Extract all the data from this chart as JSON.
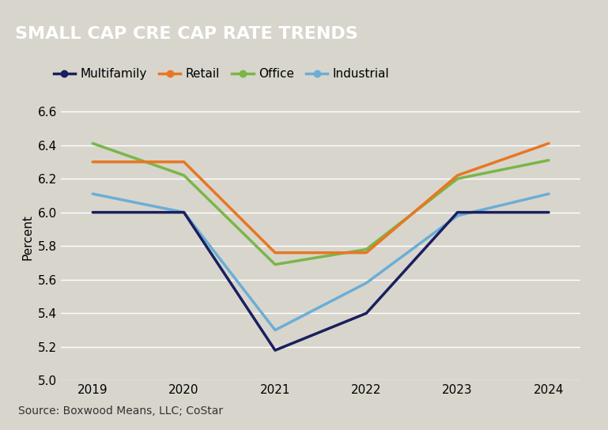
{
  "title": "SMALL CAP CRE CAP RATE TRENDS",
  "title_bg_color": "#696969",
  "title_text_color": "#ffffff",
  "chart_bg_color": "#d8d5cd",
  "plot_bg_color": "#d8d5cd",
  "source_text": "Source: Boxwood Means, LLC; CoStar",
  "ylabel": "Percent",
  "years": [
    2019,
    2020,
    2021,
    2022,
    2023,
    2024
  ],
  "ylim": [
    5.0,
    6.7
  ],
  "yticks": [
    5.0,
    5.2,
    5.4,
    5.6,
    5.8,
    6.0,
    6.2,
    6.4,
    6.6
  ],
  "series": {
    "Multifamily": {
      "values": [
        6.0,
        6.0,
        5.18,
        5.4,
        6.0,
        6.0
      ],
      "color": "#1a1f5e",
      "linewidth": 2.5,
      "zorder": 4
    },
    "Retail": {
      "values": [
        6.3,
        6.3,
        5.76,
        5.76,
        6.22,
        6.41
      ],
      "color": "#e87722",
      "linewidth": 2.5,
      "zorder": 3
    },
    "Office": {
      "values": [
        6.41,
        6.22,
        5.69,
        5.78,
        6.2,
        6.31
      ],
      "color": "#7ab648",
      "linewidth": 2.5,
      "zorder": 2
    },
    "Industrial": {
      "values": [
        6.11,
        6.0,
        5.3,
        5.58,
        5.98,
        6.11
      ],
      "color": "#6baed6",
      "linewidth": 2.5,
      "zorder": 2
    }
  },
  "legend_order": [
    "Multifamily",
    "Retail",
    "Office",
    "Industrial"
  ],
  "grid_color": "#ffffff",
  "grid_linewidth": 1.0,
  "tick_labelsize": 11,
  "axis_labelsize": 11,
  "title_fontsize": 16
}
